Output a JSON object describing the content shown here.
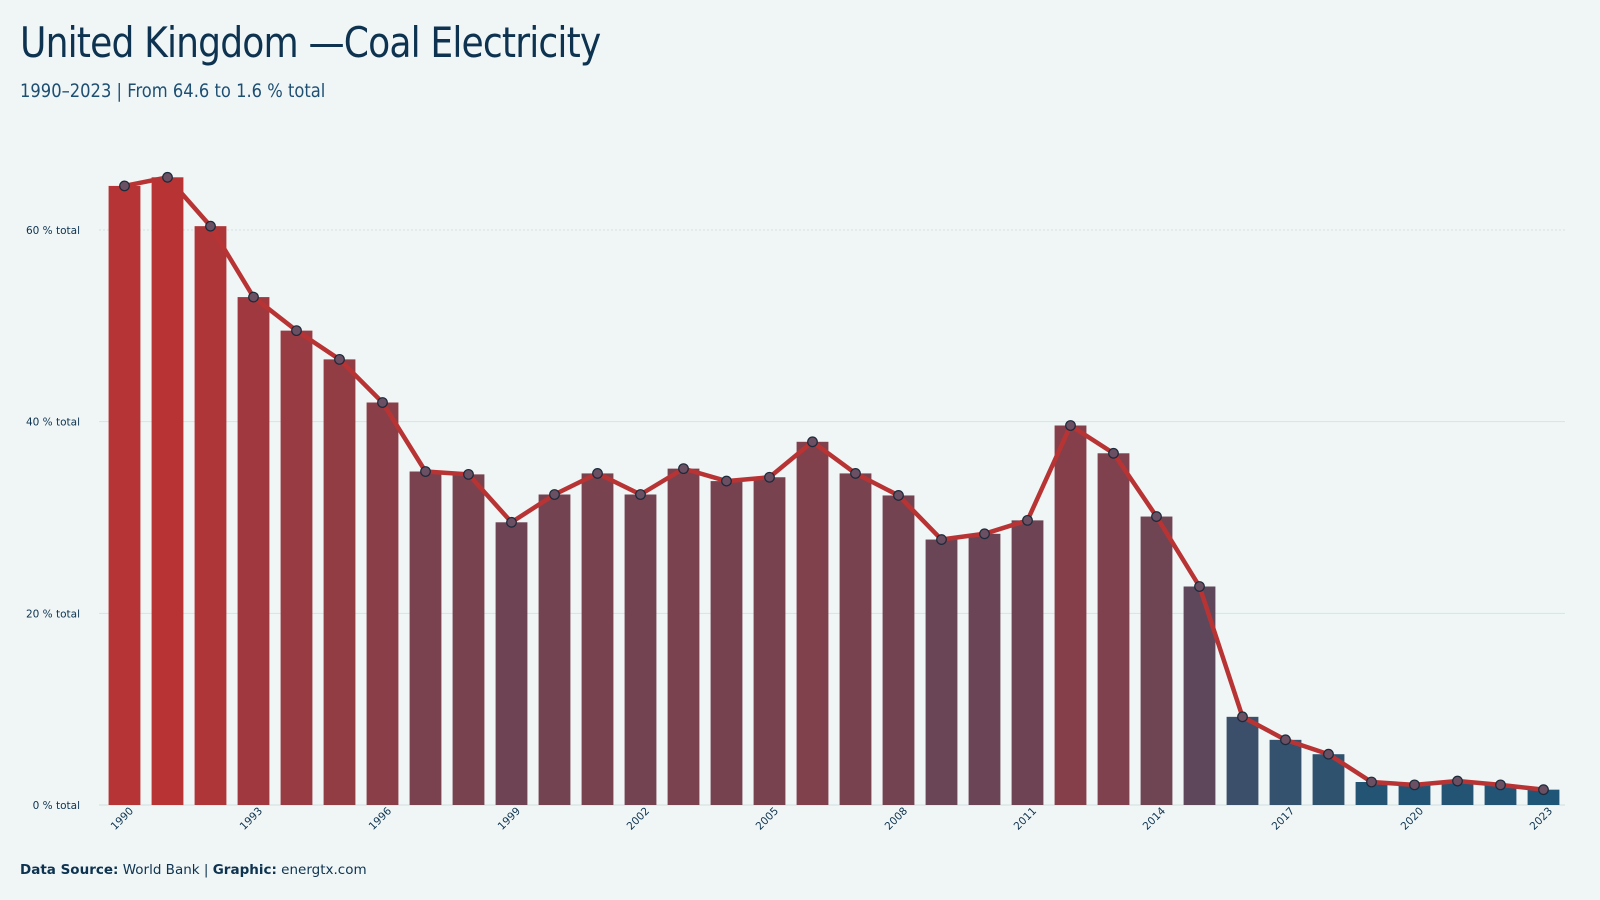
{
  "header": {
    "title": "United Kingdom —Coal Electricity",
    "subtitle": "1990–2023 | From 64.6 to 1.6 % total"
  },
  "footer": {
    "source_label": "Data Source:",
    "source_value": " World Bank | ",
    "graphic_label": "Graphic:",
    "graphic_value": " energtx.com"
  },
  "colors": {
    "background": "#f0f6f6",
    "line": "#b83434",
    "high_bar": "#b83434",
    "low_bar": "#1f5576",
    "text": "#0d3350"
  },
  "chart_data": {
    "type": "bar",
    "title": "United Kingdom —Coal Electricity",
    "subtitle": "1990–2023 | From 64.6 to 1.6 % total",
    "categories": [
      1990,
      1991,
      1992,
      1993,
      1994,
      1995,
      1996,
      1997,
      1998,
      1999,
      2000,
      2001,
      2002,
      2003,
      2004,
      2005,
      2006,
      2007,
      2008,
      2009,
      2010,
      2011,
      2012,
      2013,
      2014,
      2015,
      2016,
      2017,
      2018,
      2019,
      2020,
      2021,
      2022,
      2023
    ],
    "values": [
      64.6,
      65.5,
      60.4,
      53.0,
      49.5,
      46.5,
      42.0,
      34.8,
      34.5,
      29.5,
      32.4,
      34.6,
      32.4,
      35.1,
      33.8,
      34.2,
      37.9,
      34.6,
      32.3,
      27.7,
      28.3,
      29.7,
      39.6,
      36.7,
      30.1,
      22.8,
      9.2,
      6.8,
      5.3,
      2.4,
      2.1,
      2.5,
      2.1,
      1.6
    ],
    "y_unit": "% total",
    "ylim": [
      0,
      70
    ],
    "yticks": [
      0,
      20,
      40,
      60
    ],
    "ytick_labels": [
      "0 % total",
      "20 % total",
      "40 % total",
      "60 % total"
    ],
    "xtick_labels": [
      "1990",
      "1993",
      "1996",
      "1999",
      "2002",
      "2005",
      "2008",
      "2011",
      "2014",
      "2017",
      "2020",
      "2023"
    ],
    "overlay": "line with markers",
    "grid": "horizontal",
    "legend": "none"
  }
}
